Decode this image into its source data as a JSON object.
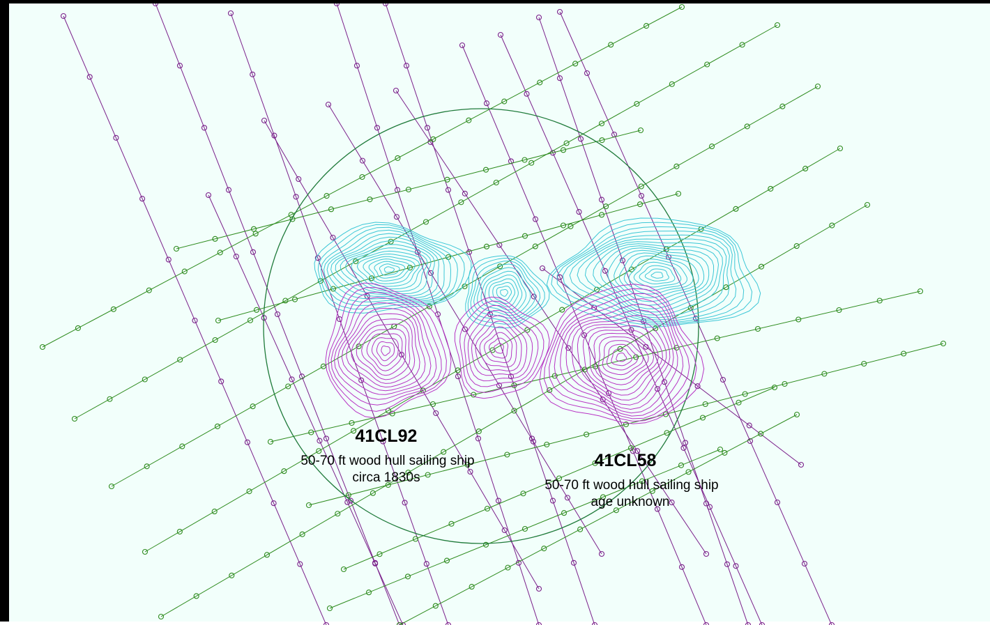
{
  "sites": [
    {
      "id": "41CL92",
      "description": "50-70 ft wood hull sailing ship",
      "date": "circa 1830s"
    },
    {
      "id": "41CL58",
      "description": "50-70 ft wood hull sailing ship",
      "date": "age unknown"
    }
  ],
  "colors": {
    "background": "#f2fffb",
    "survey_lines_nw_se": "#7a1f8a",
    "survey_lines_sw_ne": "#2e8b1e",
    "search_circle": "#1f7a3a",
    "positive_anomaly": "#b733c4",
    "negative_anomaly": "#3cc6d6"
  }
}
